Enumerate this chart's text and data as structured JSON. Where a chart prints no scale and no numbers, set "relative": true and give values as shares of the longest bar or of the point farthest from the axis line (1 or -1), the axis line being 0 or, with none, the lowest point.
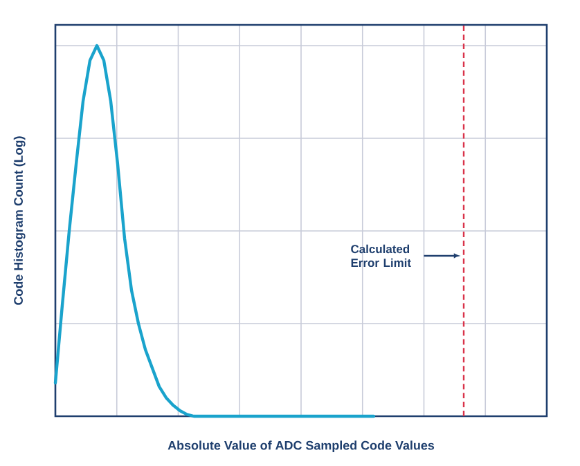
{
  "chart_data": {
    "type": "line",
    "relative": true,
    "xlabel": "Absolute Value of ADC Sampled Code Values",
    "ylabel": "Code Histogram Count (Log)",
    "color": "#1aa3cc",
    "grid": true,
    "categories": [
      null,
      null,
      null,
      null,
      null,
      null,
      null,
      null,
      null,
      null,
      null,
      null,
      null,
      null,
      null,
      null,
      null,
      null,
      null,
      null,
      null,
      null,
      null,
      null,
      null,
      null,
      null,
      null,
      null,
      null,
      null,
      null,
      null,
      null,
      null,
      null,
      null,
      null,
      null,
      null,
      null,
      null,
      null,
      null,
      null,
      null,
      null,
      null,
      null,
      null,
      null,
      null,
      null,
      null,
      null,
      null,
      null,
      null,
      null,
      null,
      null,
      null,
      null,
      null,
      null,
      null,
      null,
      null,
      null,
      null,
      null,
      null
    ],
    "values": [
      0.09,
      0.3,
      0.5,
      0.68,
      0.85,
      0.96,
      1.0,
      0.96,
      0.85,
      0.68,
      0.48,
      0.34,
      0.25,
      0.18,
      0.13,
      0.08,
      0.05,
      0.03,
      0.015,
      0.005,
      0,
      0,
      0,
      0,
      0,
      0,
      0,
      0,
      0,
      0,
      0,
      0,
      0,
      0,
      0,
      0,
      0,
      0,
      0,
      0,
      0,
      0,
      0,
      0,
      0,
      0,
      0,
      null,
      null,
      null,
      null,
      null,
      null,
      null,
      null,
      null,
      null,
      null,
      null,
      null,
      null,
      null,
      null,
      null,
      null,
      null,
      null,
      null,
      null,
      null,
      null,
      null
    ],
    "annotations": [
      "Calculated Error Limit"
    ]
  }
}
